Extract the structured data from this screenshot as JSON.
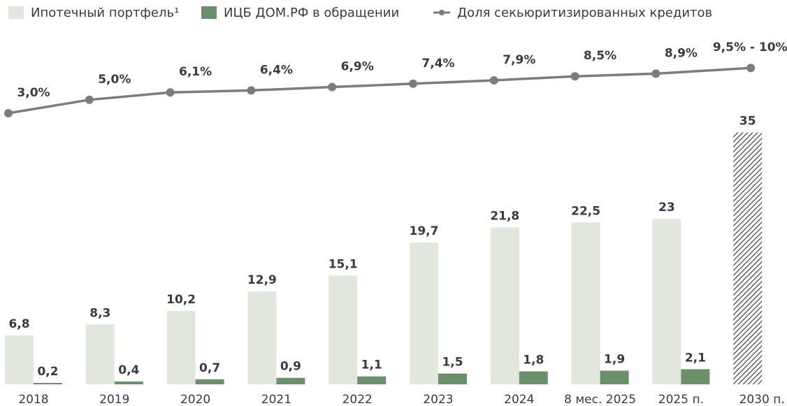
{
  "chart_data": {
    "type": "bar_line",
    "categories": [
      "2018",
      "2019",
      "2020",
      "2021",
      "2022",
      "2023",
      "2024",
      "8 мес. 2025",
      "2025 п.",
      "2030 п."
    ],
    "series": [
      {
        "name": "Ипотечный портфель¹",
        "color": "#e2e7de",
        "type": "bar",
        "values": [
          6.8,
          8.3,
          10.2,
          12.9,
          15.1,
          19.7,
          21.8,
          22.5,
          23,
          35
        ],
        "value_labels": [
          "6,8",
          "8,3",
          "10,2",
          "12,9",
          "15,1",
          "19,7",
          "21,8",
          "22,5",
          "23",
          "35"
        ],
        "hatched": [
          false,
          false,
          false,
          false,
          false,
          false,
          false,
          false,
          false,
          true
        ]
      },
      {
        "name": "ИЦБ ДОМ.РФ в обращении",
        "color": "#6b8f6b",
        "type": "bar",
        "values": [
          0.2,
          0.4,
          0.7,
          0.9,
          1.1,
          1.5,
          1.8,
          1.9,
          2.1,
          null
        ],
        "value_labels": [
          "0,2",
          "0,4",
          "0,7",
          "0,9",
          "1,1",
          "1,5",
          "1,8",
          "1,9",
          "2,1",
          null
        ]
      },
      {
        "name": "Доля секьюритизированных кредитов",
        "color": "#7b7b80",
        "type": "line",
        "values": [
          3.0,
          5.0,
          6.1,
          6.4,
          6.9,
          7.4,
          7.9,
          8.5,
          8.9,
          9.75
        ],
        "value_labels": [
          "3,0%",
          "5,0%",
          "6,1%",
          "6,4%",
          "6,9%",
          "7,4%",
          "7,9%",
          "8,5%",
          "8,9%",
          "9,5% - 10%"
        ]
      }
    ]
  }
}
